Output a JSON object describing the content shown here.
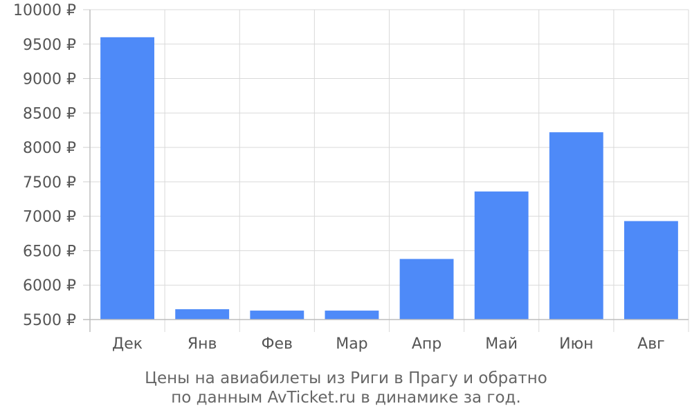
{
  "chart_data": {
    "type": "bar",
    "categories": [
      "Дек",
      "Янв",
      "Фев",
      "Мар",
      "Апр",
      "Май",
      "Июн",
      "Авг"
    ],
    "values": [
      9600,
      5650,
      5630,
      5630,
      6380,
      7360,
      8220,
      6930
    ],
    "y_ticks": [
      5500,
      6000,
      6500,
      7000,
      7500,
      8000,
      8500,
      9000,
      9500,
      10000
    ],
    "y_tick_suffix": " ₽",
    "ylim": [
      5500,
      10000
    ],
    "grid": true,
    "bar_color": "#4e8af8",
    "title": "",
    "xlabel": "",
    "ylabel": ""
  },
  "caption": {
    "line1": "Цены на авиабилеты из Риги в Прагу и обратно",
    "line2": "по данным AvTicket.ru в динамике за год."
  }
}
